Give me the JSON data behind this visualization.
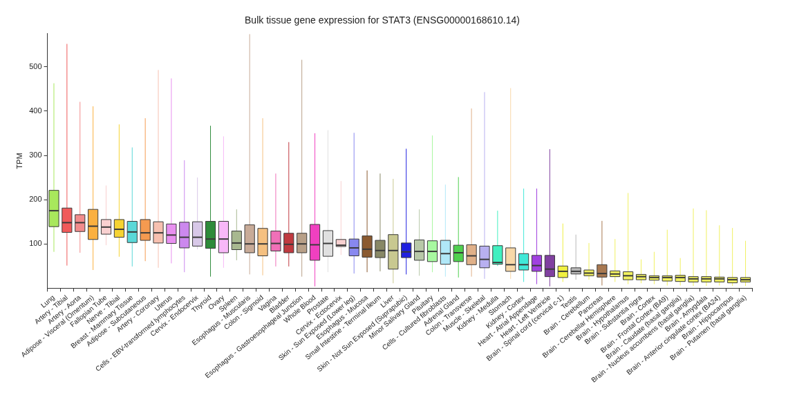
{
  "chart_data": {
    "type": "box",
    "title": "Bulk tissue gene expression for STAT3 (ENSG00000168610.14)",
    "ylabel": "TPM",
    "ylim": [
      0,
      575
    ],
    "yticks": [
      100,
      200,
      300,
      400,
      500
    ],
    "categories": [
      "Lung",
      "Artery - Tibial",
      "Artery - Aorta",
      "Adipose - Visceral (Omentum)",
      "Fallopian Tube",
      "Nerve - Tibial",
      "Breast - Mammary Tissue",
      "Adipose - Subcutaneous",
      "Artery - Coronary",
      "Uterus",
      "Cells - EBV-transformed lymphocytes",
      "Cervix - Endocervix",
      "Thyroid",
      "Ovary",
      "Spleen",
      "Esophagus - Muscularis",
      "Colon - Sigmoid",
      "Vagina",
      "Bladder",
      "Esophagus - Gastroesophageal Junction",
      "Whole Blood",
      "Prostate",
      "Cervix - Ectocervix",
      "Skin - Sun Exposed (Lower leg)",
      "Esophagus - Mucosa",
      "Small Intestine - Terminal Ileum",
      "Liver",
      "Skin - Not Sun Exposed (Suprapubic)",
      "Minor Salivary Gland",
      "Pituitary",
      "Cells - Cultured fibroblasts",
      "Adrenal Gland",
      "Colon - Transverse",
      "Muscle - Skeletal",
      "Kidney - Medulla",
      "Stomach",
      "Kidney - Cortex",
      "Heart - Atrial Appendage",
      "Heart - Left Ventricle",
      "Brain - Spinal cord (cervical c-1)",
      "Testis",
      "Brain - Cerebellum",
      "Pancreas",
      "Brain - Cerebellar Hemisphere",
      "Brain - Hypothalamus",
      "Brain - Substantia nigra",
      "Brain - Cortex",
      "Brain - Frontal Cortex (BA9)",
      "Brain - Caudate (basal ganglia)",
      "Brain - Nucleus accumbens (basal ganglia)",
      "Brain - Amygdala",
      "Brain - Anterior cingulate cortex (BA24)",
      "Brain - Hippocampus",
      "Brain - Putamen (basal ganglia)"
    ],
    "colors": [
      "#a8e85c",
      "#f05a5a",
      "#f28c8c",
      "#fbb040",
      "#f9d0d0",
      "#f5d332",
      "#5ad8d8",
      "#f59a50",
      "#f7c0b0",
      "#e890f0",
      "#cc88ee",
      "#d8c8e8",
      "#2e8b3a",
      "#f8b8f8",
      "#a8b890",
      "#c8ab98",
      "#f5c080",
      "#f070b8",
      "#c03a40",
      "#b8a088",
      "#f040c0",
      "#e0e0e0",
      "#f8d0d0",
      "#8888f0",
      "#8b5a30",
      "#888866",
      "#c8c890",
      "#2020e0",
      "#b8c8a8",
      "#a8f8a0",
      "#b0e8f8",
      "#50d050",
      "#e0b088",
      "#b8b0f0",
      "#40f0c0",
      "#f8d8a8",
      "#40e8d8",
      "#a040e0",
      "#8040a0",
      "#f0f040",
      "#b8b8b8",
      "#f0f060",
      "#a87850",
      "#f0f060",
      "#f0f060",
      "#f0f060",
      "#f0f060",
      "#f0f060",
      "#f0f060",
      "#f0f060",
      "#f0f060",
      "#f0f060",
      "#f0f060",
      "#f0f060"
    ],
    "boxes": [
      {
        "low": 82,
        "q1": 139,
        "median": 175,
        "q3": 221,
        "high": 463
      },
      {
        "low": 51,
        "q1": 126,
        "median": 148,
        "q3": 181,
        "high": 552
      },
      {
        "low": 80,
        "q1": 128,
        "median": 148,
        "q3": 166,
        "high": 421
      },
      {
        "low": 41,
        "q1": 110,
        "median": 140,
        "q3": 178,
        "high": 411
      },
      {
        "low": 97,
        "q1": 122,
        "median": 138,
        "q3": 155,
        "high": 232
      },
      {
        "low": 71,
        "q1": 115,
        "median": 133,
        "q3": 155,
        "high": 370
      },
      {
        "low": 49,
        "q1": 103,
        "median": 127,
        "q3": 151,
        "high": 318
      },
      {
        "low": 61,
        "q1": 108,
        "median": 125,
        "q3": 155,
        "high": 384
      },
      {
        "low": 46,
        "q1": 102,
        "median": 125,
        "q3": 150,
        "high": 493
      },
      {
        "low": 56,
        "q1": 101,
        "median": 120,
        "q3": 145,
        "high": 474
      },
      {
        "low": 36,
        "q1": 91,
        "median": 115,
        "q3": 149,
        "high": 289
      },
      {
        "low": 88,
        "q1": 95,
        "median": 115,
        "q3": 150,
        "high": 250
      },
      {
        "low": 26,
        "q1": 90,
        "median": 111,
        "q3": 151,
        "high": 367
      },
      {
        "low": 46,
        "q1": 80,
        "median": 111,
        "q3": 151,
        "high": 343
      },
      {
        "low": 63,
        "q1": 87,
        "median": 102,
        "q3": 129,
        "high": 178
      },
      {
        "low": 31,
        "q1": 80,
        "median": 100,
        "q3": 143,
        "high": 574
      },
      {
        "low": 29,
        "q1": 73,
        "median": 100,
        "q3": 135,
        "high": 384
      },
      {
        "low": 49,
        "q1": 84,
        "median": 101,
        "q3": 129,
        "high": 259
      },
      {
        "low": 49,
        "q1": 80,
        "median": 99,
        "q3": 124,
        "high": 330
      },
      {
        "low": 26,
        "q1": 80,
        "median": 100,
        "q3": 124,
        "high": 516
      },
      {
        "low": 4,
        "q1": 63,
        "median": 98,
        "q3": 144,
        "high": 350
      },
      {
        "low": 36,
        "q1": 72,
        "median": 101,
        "q3": 130,
        "high": 357
      },
      {
        "low": 75,
        "q1": 94,
        "median": 97,
        "q3": 110,
        "high": 242
      },
      {
        "low": 33,
        "q1": 73,
        "median": 91,
        "q3": 111,
        "high": 351
      },
      {
        "low": 36,
        "q1": 70,
        "median": 88,
        "q3": 118,
        "high": 266
      },
      {
        "low": 38,
        "q1": 69,
        "median": 85,
        "q3": 108,
        "high": 259
      },
      {
        "low": 11,
        "q1": 43,
        "median": 85,
        "q3": 121,
        "high": 247
      },
      {
        "low": 31,
        "q1": 69,
        "median": 82,
        "q3": 102,
        "high": 315
      },
      {
        "low": 28,
        "q1": 63,
        "median": 83,
        "q3": 109,
        "high": 178
      },
      {
        "low": 36,
        "q1": 60,
        "median": 83,
        "q3": 107,
        "high": 345
      },
      {
        "low": 26,
        "q1": 54,
        "median": 78,
        "q3": 108,
        "high": 234
      },
      {
        "low": 24,
        "q1": 60,
        "median": 80,
        "q3": 97,
        "high": 251
      },
      {
        "low": 26,
        "q1": 53,
        "median": 73,
        "q3": 98,
        "high": 406
      },
      {
        "low": 21,
        "q1": 46,
        "median": 65,
        "q3": 95,
        "high": 443
      },
      {
        "low": 50,
        "q1": 54,
        "median": 58,
        "q3": 96,
        "high": 175
      },
      {
        "low": 21,
        "q1": 38,
        "median": 53,
        "q3": 91,
        "high": 452
      },
      {
        "low": 14,
        "q1": 41,
        "median": 53,
        "q3": 78,
        "high": 225
      },
      {
        "low": 9,
        "q1": 38,
        "median": 51,
        "q3": 74,
        "high": 225
      },
      {
        "low": 4,
        "q1": 26,
        "median": 43,
        "q3": 74,
        "high": 314
      },
      {
        "low": 14,
        "q1": 24,
        "median": 38,
        "q3": 50,
        "high": 146
      },
      {
        "low": 19,
        "q1": 32,
        "median": 38,
        "q3": 46,
        "high": 121
      },
      {
        "low": 19,
        "q1": 28,
        "median": 34,
        "q3": 41,
        "high": 102
      },
      {
        "low": 6,
        "q1": 25,
        "median": 33,
        "q3": 53,
        "high": 152
      },
      {
        "low": 14,
        "q1": 26,
        "median": 32,
        "q3": 39,
        "high": 111
      },
      {
        "low": 9,
        "q1": 19,
        "median": 28,
        "q3": 37,
        "high": 215
      },
      {
        "low": 11,
        "q1": 19,
        "median": 26,
        "q3": 31,
        "high": 65
      },
      {
        "low": 9,
        "q1": 18,
        "median": 24,
        "q3": 28,
        "high": 82
      },
      {
        "low": 6,
        "q1": 16,
        "median": 24,
        "q3": 28,
        "high": 132
      },
      {
        "low": 6,
        "q1": 15,
        "median": 24,
        "q3": 29,
        "high": 68
      },
      {
        "low": 5,
        "q1": 14,
        "median": 21,
        "q3": 26,
        "high": 180
      },
      {
        "low": 5,
        "q1": 14,
        "median": 21,
        "q3": 26,
        "high": 176
      },
      {
        "low": 6,
        "q1": 14,
        "median": 21,
        "q3": 25,
        "high": 142
      },
      {
        "low": 5,
        "q1": 12,
        "median": 19,
        "q3": 24,
        "high": 136
      },
      {
        "low": 5,
        "q1": 14,
        "median": 19,
        "q3": 24,
        "high": 107
      }
    ]
  }
}
